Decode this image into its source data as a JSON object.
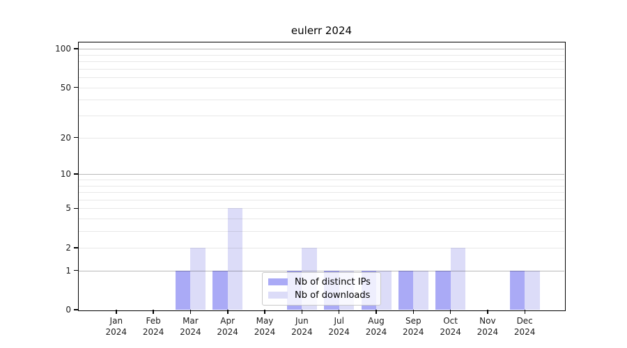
{
  "title": "eulerr 2024",
  "chart_data": {
    "type": "bar",
    "title": "eulerr 2024",
    "categories": [
      "Jan 2024",
      "Feb 2024",
      "Mar 2024",
      "Apr 2024",
      "May 2024",
      "Jun 2024",
      "Jul 2024",
      "Aug 2024",
      "Sep 2024",
      "Oct 2024",
      "Nov 2024",
      "Dec 2024"
    ],
    "category_lines": [
      {
        "month": "Jan",
        "year": "2024"
      },
      {
        "month": "Feb",
        "year": "2024"
      },
      {
        "month": "Mar",
        "year": "2024"
      },
      {
        "month": "Apr",
        "year": "2024"
      },
      {
        "month": "May",
        "year": "2024"
      },
      {
        "month": "Jun",
        "year": "2024"
      },
      {
        "month": "Jul",
        "year": "2024"
      },
      {
        "month": "Aug",
        "year": "2024"
      },
      {
        "month": "Sep",
        "year": "2024"
      },
      {
        "month": "Oct",
        "year": "2024"
      },
      {
        "month": "Nov",
        "year": "2024"
      },
      {
        "month": "Dec",
        "year": "2024"
      }
    ],
    "series": [
      {
        "name": "Nb of distinct IPs",
        "color": "#aaaaf6",
        "values": [
          0,
          0,
          1,
          1,
          0,
          1,
          1,
          1,
          1,
          1,
          0,
          1
        ]
      },
      {
        "name": "Nb of downloads",
        "color": "#dcdcf8",
        "values": [
          0,
          0,
          2,
          5,
          0,
          2,
          1,
          1,
          1,
          2,
          0,
          1
        ]
      }
    ],
    "yscale": "log1p",
    "ylim": [
      0,
      100
    ],
    "ytick_labels": [
      0,
      1,
      2,
      5,
      10,
      20,
      50,
      100
    ],
    "major_gridlines": [
      1,
      10,
      100
    ],
    "minor_gridlines": [
      2,
      3,
      4,
      5,
      6,
      7,
      8,
      9,
      20,
      30,
      40,
      50,
      60,
      70,
      80,
      90
    ],
    "grid": true,
    "legend_position": "inside-bottom-center",
    "xlabel": "",
    "ylabel": ""
  }
}
